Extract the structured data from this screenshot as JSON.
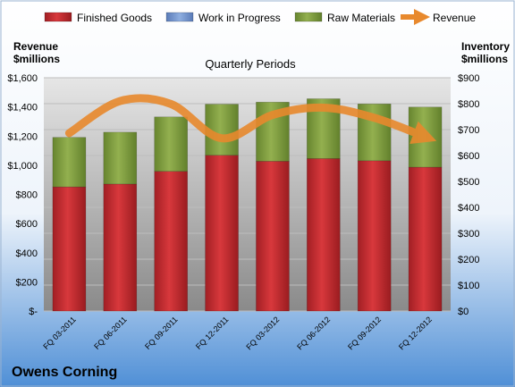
{
  "company": "Owens Corning",
  "chart_data": {
    "type": "bar",
    "title": "Quarterly Periods",
    "left_axis_label": [
      "Revenue",
      "$millions"
    ],
    "right_axis_label": [
      "Inventory",
      "$millions"
    ],
    "categories": [
      "FQ 03-2011",
      "FQ 06-2011",
      "FQ 09-2011",
      "FQ 12-2011",
      "FQ 03-2012",
      "FQ 06-2012",
      "FQ 09-2012",
      "FQ 12-2012"
    ],
    "series": [
      {
        "name": "Finished Goods",
        "axis": "right",
        "stack": true,
        "color": "#c0282d",
        "values": [
          479,
          490,
          539,
          601,
          578,
          588,
          580,
          555
        ]
      },
      {
        "name": "Work in Progress",
        "axis": "right",
        "stack": true,
        "color": "#6e8fc9",
        "values": [
          0,
          0,
          0,
          0,
          0,
          0,
          0,
          0
        ]
      },
      {
        "name": "Raw Materials",
        "axis": "right",
        "stack": true,
        "color": "#7a9a3b",
        "values": [
          191,
          200,
          210,
          197,
          228,
          231,
          219,
          232
        ]
      },
      {
        "name": "Revenue",
        "axis": "left",
        "type": "line",
        "color": "#e8892d",
        "values": [
          1220,
          1440,
          1420,
          1185,
          1345,
          1395,
          1325,
          1195
        ]
      }
    ],
    "left_axis": {
      "min": 0,
      "max": 1600,
      "step": 200,
      "tick_labels": [
        "$-",
        "$200",
        "$400",
        "$600",
        "$800",
        "$1,000",
        "$1,200",
        "$1,400",
        "$1,600"
      ]
    },
    "right_axis": {
      "min": 0,
      "max": 900,
      "step": 100,
      "tick_labels": [
        "$0",
        "$100",
        "$200",
        "$300",
        "$400",
        "$500",
        "$600",
        "$700",
        "$800",
        "$900"
      ]
    },
    "legend_position": "top",
    "grid": true
  }
}
